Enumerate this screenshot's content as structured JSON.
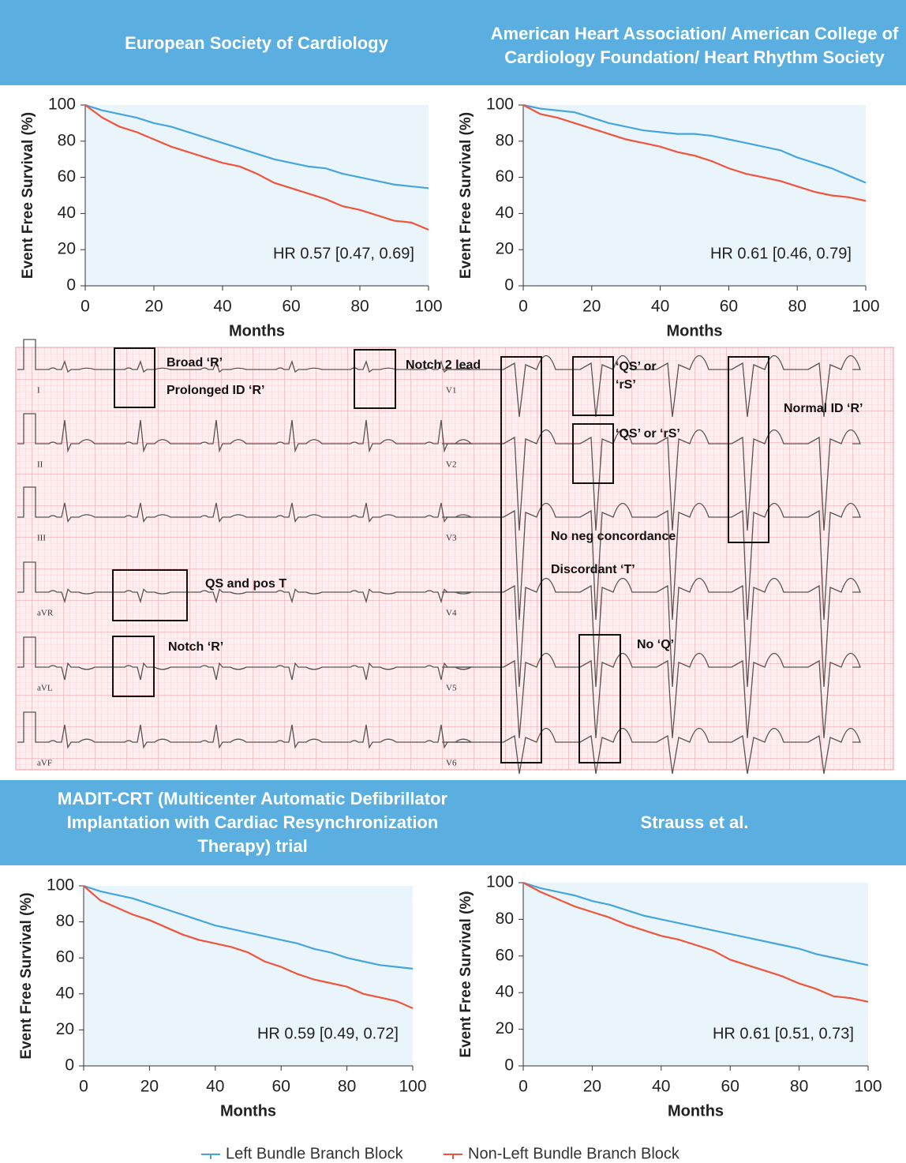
{
  "chart_data": [
    {
      "type": "line",
      "title": "European Society of Cardiology",
      "x": [
        0,
        5,
        10,
        15,
        20,
        25,
        30,
        35,
        40,
        45,
        50,
        55,
        60,
        65,
        70,
        75,
        80,
        85,
        90,
        95,
        100
      ],
      "series": [
        {
          "name": "Left Bundle Branch Block",
          "color": "#45a6df",
          "values": [
            100,
            97,
            95,
            93,
            90,
            88,
            85,
            82,
            79,
            76,
            73,
            70,
            68,
            66,
            65,
            62,
            60,
            58,
            56,
            55,
            54
          ]
        },
        {
          "name": "Non-Left Bundle Branch Block",
          "color": "#f0553c",
          "values": [
            100,
            93,
            88,
            85,
            81,
            77,
            74,
            71,
            68,
            66,
            62,
            57,
            54,
            51,
            48,
            44,
            42,
            39,
            36,
            35,
            31
          ]
        }
      ],
      "xlim": [
        0,
        100
      ],
      "ylim": [
        0,
        100
      ],
      "xticks": [
        0,
        20,
        40,
        60,
        80,
        100
      ],
      "yticks": [
        0,
        20,
        40,
        60,
        80,
        100
      ],
      "xlabel": "Months",
      "ylabel": "Event Free Survival (%)",
      "annotation": "HR 0.57 [0.47, 0.69]"
    },
    {
      "type": "line",
      "title": "American Heart Association/ American College of Cardiology Foundation/ Heart Rhythm Society",
      "x": [
        0,
        5,
        10,
        15,
        20,
        25,
        30,
        35,
        40,
        45,
        50,
        55,
        60,
        65,
        70,
        75,
        80,
        85,
        90,
        95,
        100
      ],
      "series": [
        {
          "name": "Left Bundle Branch Block",
          "color": "#45a6df",
          "values": [
            100,
            98,
            97,
            96,
            93,
            90,
            88,
            86,
            85,
            84,
            84,
            83,
            81,
            79,
            77,
            75,
            71,
            68,
            65,
            61,
            57
          ]
        },
        {
          "name": "Non-Left Bundle Branch Block",
          "color": "#f0553c",
          "values": [
            100,
            95,
            93,
            90,
            87,
            84,
            81,
            79,
            77,
            74,
            72,
            69,
            65,
            62,
            60,
            58,
            55,
            52,
            50,
            49,
            47
          ]
        }
      ],
      "xlim": [
        0,
        100
      ],
      "ylim": [
        0,
        100
      ],
      "xticks": [
        0,
        20,
        40,
        60,
        80,
        100
      ],
      "yticks": [
        0,
        20,
        40,
        60,
        80,
        100
      ],
      "xlabel": "Months",
      "ylabel": "Event Free Survival (%)",
      "annotation": "HR 0.61 [0.46, 0.79]"
    },
    {
      "type": "line",
      "title": "MADIT-CRT (Multicenter Automatic Defibrillator Implantation with Cardiac Resynchronization Therapy) trial",
      "x": [
        0,
        5,
        10,
        15,
        20,
        25,
        30,
        35,
        40,
        45,
        50,
        55,
        60,
        65,
        70,
        75,
        80,
        85,
        90,
        95,
        100
      ],
      "series": [
        {
          "name": "Left Bundle Branch Block",
          "color": "#45a6df",
          "values": [
            100,
            97,
            95,
            93,
            90,
            87,
            84,
            81,
            78,
            76,
            74,
            72,
            70,
            68,
            65,
            63,
            60,
            58,
            56,
            55,
            54
          ]
        },
        {
          "name": "Non-Left Bundle Branch Block",
          "color": "#f0553c",
          "values": [
            100,
            92,
            88,
            84,
            81,
            77,
            73,
            70,
            68,
            66,
            63,
            58,
            55,
            51,
            48,
            46,
            44,
            40,
            38,
            36,
            32
          ]
        }
      ],
      "xlim": [
        0,
        100
      ],
      "ylim": [
        0,
        100
      ],
      "xticks": [
        0,
        20,
        40,
        60,
        80,
        100
      ],
      "yticks": [
        0,
        20,
        40,
        60,
        80,
        100
      ],
      "xlabel": "Months",
      "ylabel": "Event Free Survival (%)",
      "annotation": "HR 0.59 [0.49, 0.72]"
    },
    {
      "type": "line",
      "title": "Strauss et al.",
      "x": [
        0,
        5,
        10,
        15,
        20,
        25,
        30,
        35,
        40,
        45,
        50,
        55,
        60,
        65,
        70,
        75,
        80,
        85,
        90,
        95,
        100
      ],
      "series": [
        {
          "name": "Left Bundle Branch Block",
          "color": "#45a6df",
          "values": [
            100,
            97,
            95,
            93,
            90,
            88,
            85,
            82,
            80,
            78,
            76,
            74,
            72,
            70,
            68,
            66,
            64,
            61,
            59,
            57,
            55
          ]
        },
        {
          "name": "Non-Left Bundle Branch Block",
          "color": "#f0553c",
          "values": [
            100,
            95,
            91,
            87,
            84,
            81,
            77,
            74,
            71,
            69,
            66,
            63,
            58,
            55,
            52,
            49,
            45,
            42,
            38,
            37,
            35
          ]
        }
      ],
      "xlim": [
        0,
        100
      ],
      "ylim": [
        0,
        100
      ],
      "xticks": [
        0,
        20,
        40,
        60,
        80,
        100
      ],
      "yticks": [
        0,
        20,
        40,
        60,
        80,
        100
      ],
      "xlabel": "Months",
      "ylabel": "Event Free Survival (%)",
      "annotation": "HR 0.61 [0.51, 0.73]"
    }
  ],
  "ecg": {
    "leads": [
      "I",
      "II",
      "III",
      "aVR",
      "aVL",
      "aVF",
      "V1",
      "V2",
      "V3",
      "V4",
      "V5",
      "V6"
    ],
    "annotations": [
      "Broad ‘R’",
      "Prolonged ID ‘R’",
      "Notch 2 lead",
      "‘QS’ or",
      "‘rS’",
      "Normal ID ‘R’",
      "‘QS’ or ‘rS’",
      "No neg concordance",
      "Discordant ‘T’",
      "QS and pos T",
      "Notch ‘R’",
      "No ‘Q’"
    ]
  }
}
